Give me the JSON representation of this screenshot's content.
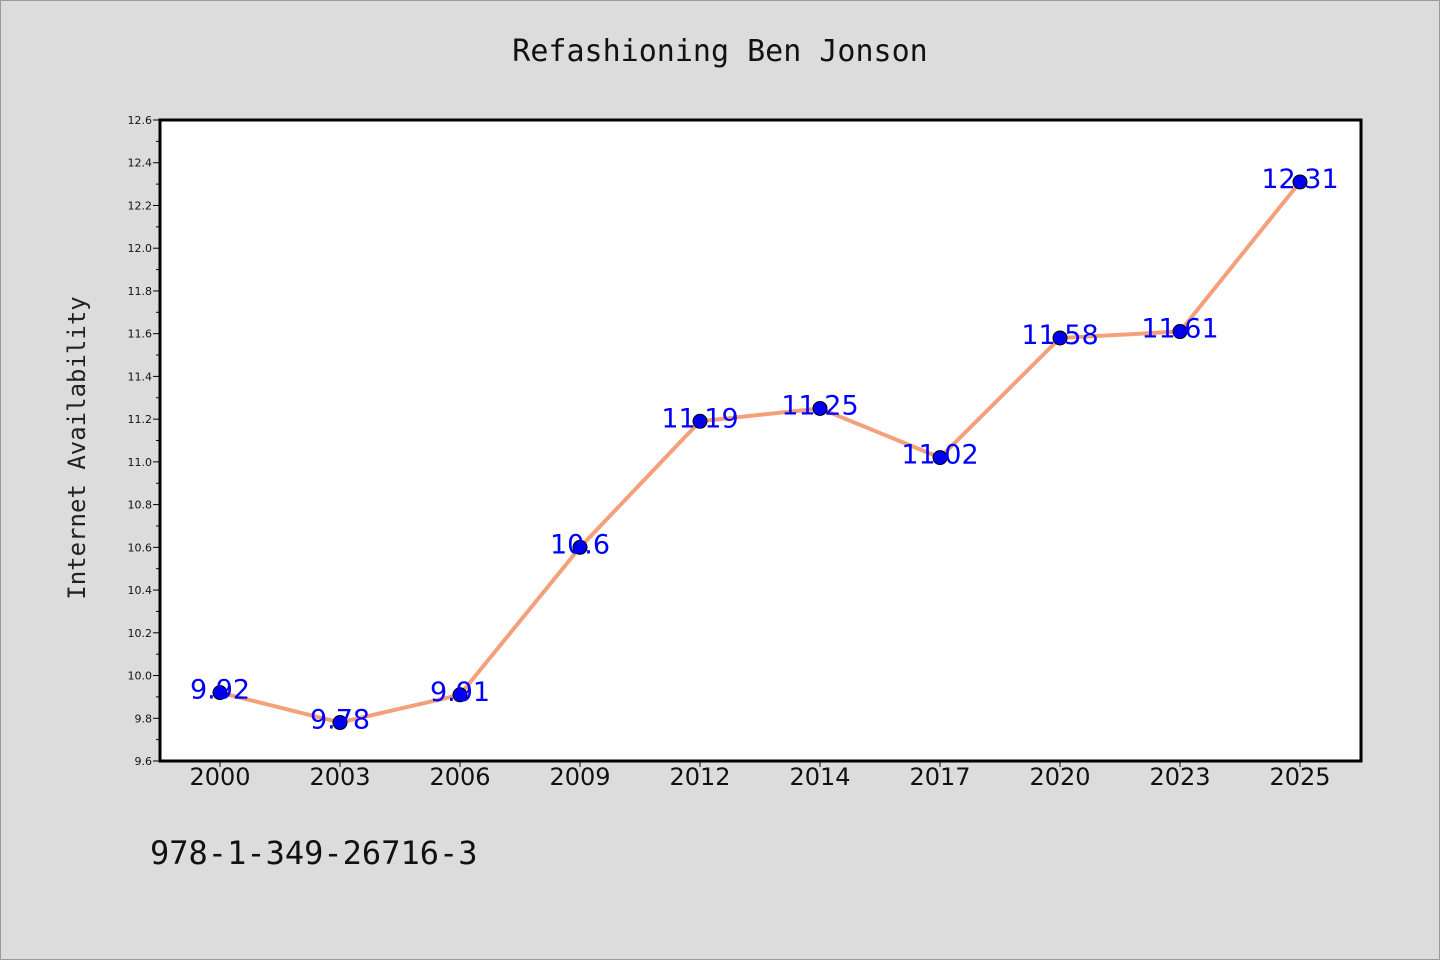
{
  "chart_data": {
    "type": "line",
    "title": "Refashioning Ben Jonson",
    "xlabel": "",
    "ylabel": "Internet Availability",
    "categories": [
      "2000",
      "2003",
      "2006",
      "2009",
      "2012",
      "2014",
      "2017",
      "2020",
      "2023",
      "2025"
    ],
    "series": [
      {
        "values": [
          9.92,
          9.78,
          9.91,
          10.6,
          11.19,
          11.25,
          11.02,
          11.58,
          11.61,
          12.31
        ],
        "labels": [
          "9.92",
          "9.78",
          "9.91",
          "10.6",
          "11.19",
          "11.25",
          "11.02",
          "11.58",
          "11.61",
          "12.31"
        ],
        "line_color": "#f4a07a",
        "marker_color": "#0000ee"
      }
    ],
    "ylim": [
      9.6,
      12.6
    ],
    "yticks": [
      "9.6",
      "9.8",
      "10.0",
      "10.2",
      "10.4",
      "10.6",
      "10.8",
      "11.0",
      "11.2",
      "11.4",
      "11.6",
      "11.8",
      "12.0",
      "12.2",
      "12.4",
      "12.6"
    ],
    "grid": false,
    "legend": "none"
  },
  "footer": {
    "isbn": "978-1-349-26716-3"
  },
  "colors": {
    "background": "#dcdcdc",
    "plot_background": "#ffffff",
    "label_color": "#0000ff"
  }
}
